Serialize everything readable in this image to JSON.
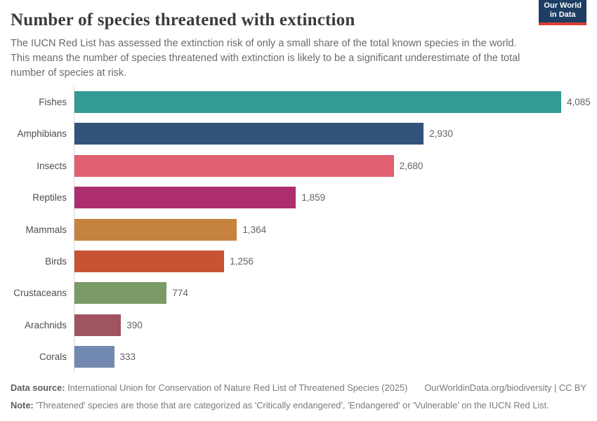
{
  "header": {
    "title": "Number of species threatened with extinction",
    "subtitle": "The IUCN Red List has assessed the extinction risk of only a small share of the total known species in the world. This means the number of species threatened with extinction is likely to be a significant underestimate of the total number of species at risk.",
    "logo": {
      "line1": "Our World",
      "line2": "in Data"
    }
  },
  "chart_data": {
    "type": "bar",
    "orientation": "horizontal",
    "title": "Number of species threatened with extinction",
    "categories": [
      "Fishes",
      "Amphibians",
      "Insects",
      "Reptiles",
      "Mammals",
      "Birds",
      "Crustaceans",
      "Arachnids",
      "Corals"
    ],
    "values": [
      4085,
      2930,
      2680,
      1859,
      1364,
      1256,
      774,
      390,
      333
    ],
    "value_labels": [
      "4,085",
      "2,930",
      "2,680",
      "1,859",
      "1,364",
      "1,256",
      "774",
      "390",
      "333"
    ],
    "bar_colors": [
      "#349a94",
      "#33547a",
      "#e0606f",
      "#ad2e6e",
      "#c6823f",
      "#c75335",
      "#7a9b68",
      "#a05460",
      "#7289b1"
    ],
    "xlabel": "",
    "ylabel": "",
    "xlim": [
      0,
      4085
    ],
    "grid": false,
    "legend": "none"
  },
  "footer": {
    "datasource_label": "Data source:",
    "datasource_text": "International Union for Conservation of Nature Red List of Threatened Species (2025)",
    "link_text": "OurWorldinData.org/biodiversity | CC BY",
    "note_label": "Note:",
    "note_text": "'Threatened' species are those that are categorized as 'Critically endangered', 'Endangered' or 'Vulnerable' on the IUCN Red List."
  },
  "colors": {
    "logo_background": "#1d3d63",
    "logo_accent": "#dc3e34",
    "axis_line": "#d6d6d6",
    "title_text": "#3b3b3b",
    "body_text": "#6b6b6b"
  }
}
